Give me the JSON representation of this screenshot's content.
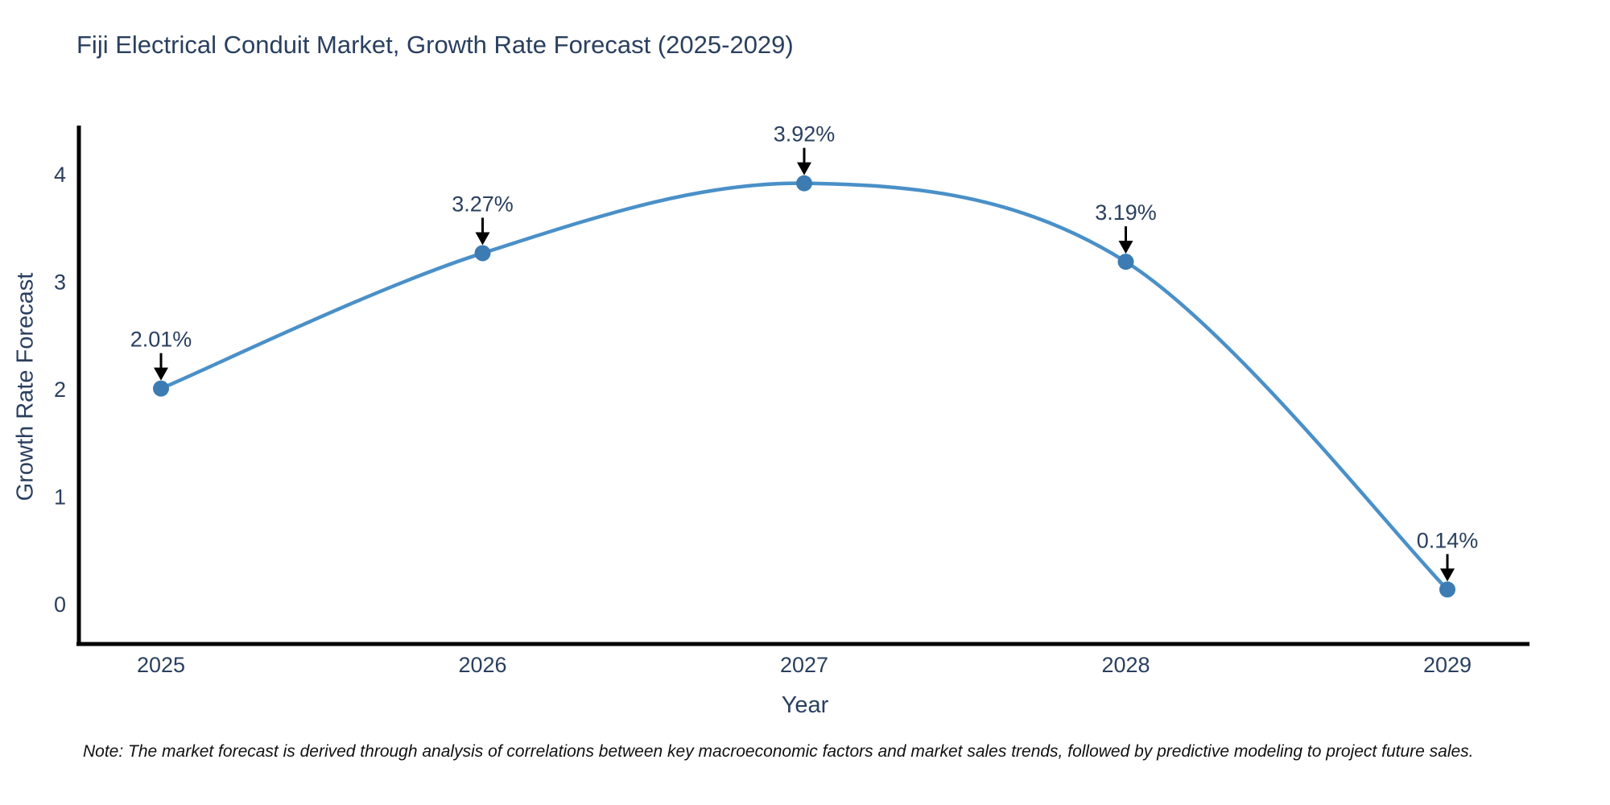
{
  "title": "Fiji Electrical Conduit Market, Growth Rate Forecast (2025-2029)",
  "note": "Note: The market forecast is derived through analysis of correlations between key macroeconomic factors and market sales trends, followed by predictive modeling to project future sales.",
  "colors": {
    "line": "#4a90c8",
    "marker": "#3c7cb3",
    "title_text": "#2a3f5f",
    "axis_text": "#2a3f5f",
    "annotation_arrow": "#000000",
    "axis_line": "#000000",
    "background": "#ffffff"
  },
  "chart_data": {
    "type": "line",
    "line_shape": "spline",
    "x": [
      2025,
      2026,
      2027,
      2028,
      2029
    ],
    "values": [
      2.01,
      3.27,
      3.92,
      3.19,
      0.14
    ],
    "point_labels": [
      "2.01%",
      "3.27%",
      "3.92%",
      "3.19%",
      "0.14%"
    ],
    "series_name": "Growth Rate Forecast",
    "title": "Fiji Electrical Conduit Market, Growth Rate Forecast (2025-2029)",
    "xlabel": "Year",
    "ylabel": "Growth Rate Forecast",
    "xticks": [
      "2025",
      "2026",
      "2027",
      "2028",
      "2029"
    ],
    "yticks": [
      0,
      1,
      2,
      3,
      4
    ],
    "ylim": [
      -0.55,
      4.45
    ],
    "grid": false,
    "legend": false,
    "annotations": "value labels with downward arrows above each point",
    "markers": true
  }
}
